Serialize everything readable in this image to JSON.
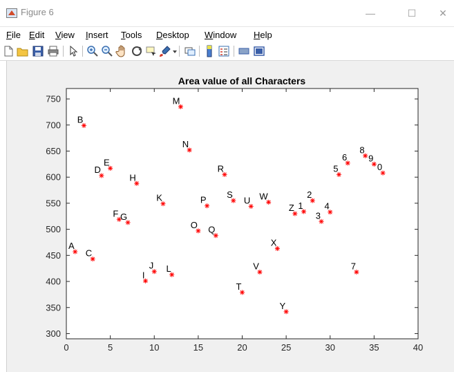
{
  "window": {
    "title": "Figure 6",
    "minimize": "—",
    "maximize": "☐",
    "close": "✕"
  },
  "menu": {
    "items": [
      {
        "u": "F",
        "rest": "ile"
      },
      {
        "u": "E",
        "rest": "dit"
      },
      {
        "u": "V",
        "rest": "iew"
      },
      {
        "u": "I",
        "rest": "nsert"
      },
      {
        "u": "T",
        "rest": "ools"
      },
      {
        "u": "D",
        "rest": "esktop"
      },
      {
        "u": "W",
        "rest": "indow"
      },
      {
        "u": "H",
        "rest": "elp"
      }
    ]
  },
  "toolbar": {
    "icons": [
      "new-figure-icon",
      "open-file-icon",
      "save-icon",
      "print-icon",
      "pointer-icon",
      "zoom-in-icon",
      "zoom-out-icon",
      "pan-icon",
      "rotate-3d-icon",
      "data-cursor-icon",
      "brush-icon",
      "link-plot-icon",
      "colorbar-icon",
      "legend-icon",
      "hide-plot-tools-icon",
      "show-plot-tools-icon"
    ]
  },
  "chart_data": {
    "type": "scatter",
    "title": "Area value of all Characters",
    "xlabel": "",
    "ylabel": "",
    "xlim": [
      0,
      40
    ],
    "ylim": [
      290,
      770
    ],
    "xticks": [
      0,
      5,
      10,
      15,
      20,
      25,
      30,
      35,
      40
    ],
    "yticks": [
      300,
      350,
      400,
      450,
      500,
      550,
      600,
      650,
      700,
      750
    ],
    "grid": false,
    "marker": "*",
    "marker_color": "#ff0000",
    "points": [
      {
        "x": 1,
        "y": 457,
        "label": "A"
      },
      {
        "x": 2,
        "y": 699,
        "label": "B"
      },
      {
        "x": 3,
        "y": 443,
        "label": "C"
      },
      {
        "x": 4,
        "y": 603,
        "label": "D"
      },
      {
        "x": 5,
        "y": 617,
        "label": "E"
      },
      {
        "x": 6,
        "y": 519,
        "label": "F"
      },
      {
        "x": 7,
        "y": 513,
        "label": "G"
      },
      {
        "x": 8,
        "y": 588,
        "label": "H"
      },
      {
        "x": 9,
        "y": 401,
        "label": "I"
      },
      {
        "x": 10,
        "y": 419,
        "label": "J"
      },
      {
        "x": 11,
        "y": 549,
        "label": "K"
      },
      {
        "x": 12,
        "y": 413,
        "label": "L"
      },
      {
        "x": 13,
        "y": 735,
        "label": "M"
      },
      {
        "x": 14,
        "y": 652,
        "label": "N"
      },
      {
        "x": 15,
        "y": 497,
        "label": "O"
      },
      {
        "x": 16,
        "y": 545,
        "label": "P"
      },
      {
        "x": 17,
        "y": 488,
        "label": "Q"
      },
      {
        "x": 18,
        "y": 605,
        "label": "R"
      },
      {
        "x": 19,
        "y": 555,
        "label": "S"
      },
      {
        "x": 20,
        "y": 379,
        "label": "T"
      },
      {
        "x": 21,
        "y": 544,
        "label": "U"
      },
      {
        "x": 22,
        "y": 418,
        "label": "V"
      },
      {
        "x": 23,
        "y": 552,
        "label": "W"
      },
      {
        "x": 24,
        "y": 463,
        "label": "X"
      },
      {
        "x": 25,
        "y": 342,
        "label": "Y"
      },
      {
        "x": 26,
        "y": 530,
        "label": "Z"
      },
      {
        "x": 27,
        "y": 534,
        "label": "1"
      },
      {
        "x": 28,
        "y": 555,
        "label": "2"
      },
      {
        "x": 29,
        "y": 515,
        "label": "3"
      },
      {
        "x": 30,
        "y": 533,
        "label": "4"
      },
      {
        "x": 31,
        "y": 605,
        "label": "5"
      },
      {
        "x": 32,
        "y": 627,
        "label": "6"
      },
      {
        "x": 33,
        "y": 418,
        "label": "7"
      },
      {
        "x": 34,
        "y": 641,
        "label": "8"
      },
      {
        "x": 35,
        "y": 625,
        "label": "9"
      },
      {
        "x": 36,
        "y": 608,
        "label": "0"
      }
    ]
  }
}
